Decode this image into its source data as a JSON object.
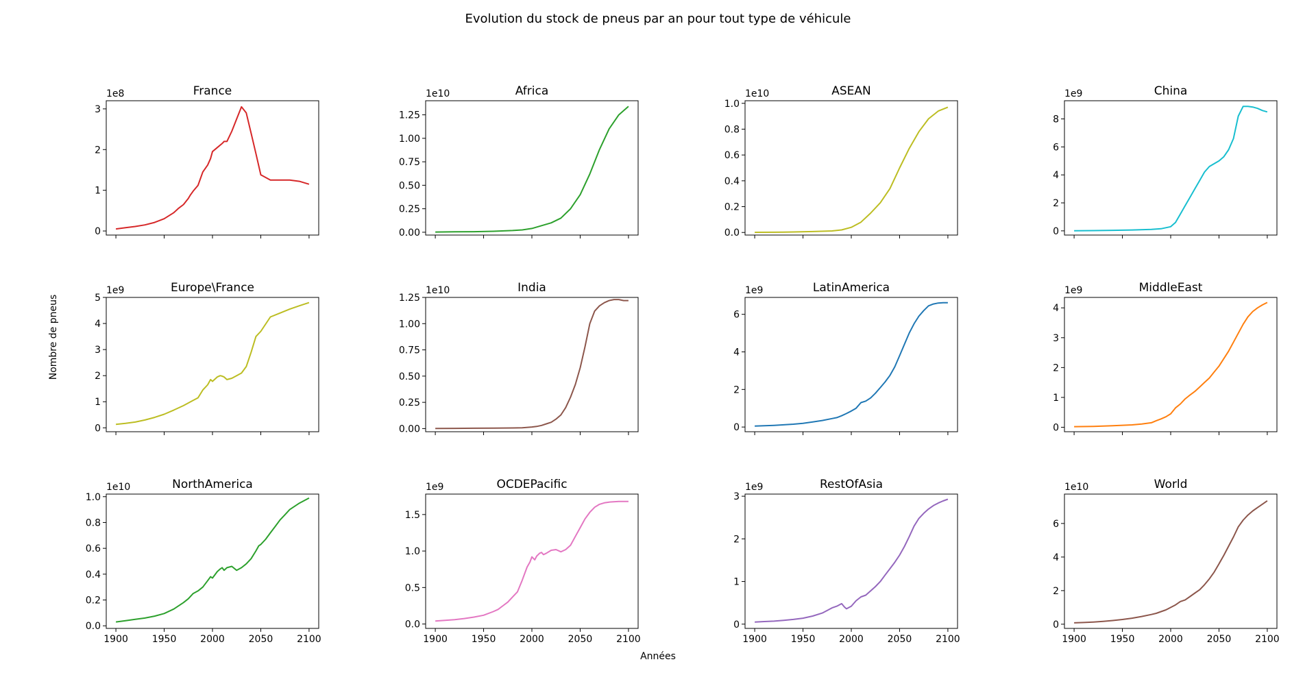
{
  "figure": {
    "title": "Evolution du stock de pneus par an pour tout type de véhicule",
    "xlabel": "Années",
    "ylabel": "Nombre de pneus"
  },
  "chart_data": [
    {
      "type": "line",
      "title": "France",
      "color": "#d62728",
      "scale_label": "1e8",
      "ylim": [
        -0.1,
        3.2
      ],
      "yticks": [
        0,
        1,
        2,
        3
      ],
      "xlim": [
        1890,
        2110
      ],
      "xticks": [
        1900,
        1950,
        2000,
        2050,
        2100
      ],
      "show_xticklabels": false,
      "x": [
        1900,
        1910,
        1920,
        1930,
        1940,
        1950,
        1960,
        1965,
        1970,
        1975,
        1977,
        1980,
        1985,
        1990,
        1995,
        1998,
        2000,
        2005,
        2010,
        2012,
        2015,
        2020,
        2025,
        2030,
        2035,
        2040,
        2045,
        2050,
        2060,
        2070,
        2080,
        2090,
        2100
      ],
      "y": [
        0.05,
        0.08,
        0.11,
        0.15,
        0.21,
        0.3,
        0.45,
        0.56,
        0.65,
        0.8,
        0.88,
        0.98,
        1.12,
        1.45,
        1.62,
        1.78,
        1.95,
        2.05,
        2.15,
        2.2,
        2.2,
        2.45,
        2.75,
        3.05,
        2.9,
        2.4,
        1.9,
        1.38,
        1.25,
        1.25,
        1.25,
        1.22,
        1.15
      ]
    },
    {
      "type": "line",
      "title": "Africa",
      "color": "#2ca02c",
      "scale_label": "1e10",
      "ylim": [
        -0.03,
        1.4
      ],
      "yticks": [
        0.0,
        0.25,
        0.5,
        0.75,
        1.0,
        1.25
      ],
      "yticklabels": [
        "0.00",
        "0.25",
        "0.50",
        "0.75",
        "1.00",
        "1.25"
      ],
      "xlim": [
        1890,
        2110
      ],
      "xticks": [
        1900,
        1950,
        2000,
        2050,
        2100
      ],
      "show_xticklabels": false,
      "x": [
        1900,
        1920,
        1940,
        1960,
        1980,
        1990,
        2000,
        2010,
        2020,
        2030,
        2040,
        2050,
        2060,
        2070,
        2080,
        2090,
        2100
      ],
      "y": [
        0.002,
        0.004,
        0.006,
        0.01,
        0.018,
        0.025,
        0.04,
        0.07,
        0.1,
        0.15,
        0.25,
        0.4,
        0.62,
        0.88,
        1.1,
        1.25,
        1.34
      ]
    },
    {
      "type": "line",
      "title": "ASEAN",
      "color": "#bcbd22",
      "scale_label": "1e10",
      "ylim": [
        -0.02,
        1.02
      ],
      "yticks": [
        0.0,
        0.2,
        0.4,
        0.6,
        0.8,
        1.0
      ],
      "yticklabels": [
        "0.0",
        "0.2",
        "0.4",
        "0.6",
        "0.8",
        "1.0"
      ],
      "xlim": [
        1890,
        2110
      ],
      "xticks": [
        1900,
        1950,
        2000,
        2050,
        2100
      ],
      "show_xticklabels": false,
      "x": [
        1900,
        1920,
        1940,
        1960,
        1980,
        1990,
        2000,
        2010,
        2020,
        2030,
        2040,
        2050,
        2060,
        2070,
        2080,
        2090,
        2100
      ],
      "y": [
        0.001,
        0.002,
        0.004,
        0.007,
        0.012,
        0.02,
        0.04,
        0.08,
        0.15,
        0.23,
        0.34,
        0.5,
        0.65,
        0.78,
        0.88,
        0.94,
        0.97
      ]
    },
    {
      "type": "line",
      "title": "China",
      "color": "#17becf",
      "scale_label": "1e9",
      "ylim": [
        -0.3,
        9.3
      ],
      "yticks": [
        0,
        2,
        4,
        6,
        8
      ],
      "xlim": [
        1890,
        2110
      ],
      "xticks": [
        1900,
        1950,
        2000,
        2050,
        2100
      ],
      "show_xticklabels": false,
      "x": [
        1900,
        1920,
        1940,
        1960,
        1980,
        1990,
        2000,
        2005,
        2010,
        2015,
        2020,
        2025,
        2030,
        2035,
        2040,
        2045,
        2050,
        2055,
        2060,
        2065,
        2070,
        2075,
        2080,
        2085,
        2090,
        2095,
        2100
      ],
      "y": [
        0.01,
        0.02,
        0.04,
        0.06,
        0.1,
        0.15,
        0.3,
        0.6,
        1.2,
        1.8,
        2.4,
        3.0,
        3.6,
        4.2,
        4.6,
        4.8,
        5.0,
        5.3,
        5.8,
        6.6,
        8.2,
        8.9,
        8.9,
        8.85,
        8.75,
        8.6,
        8.5
      ]
    },
    {
      "type": "line",
      "title": "Europe\\France",
      "color": "#bcbd22",
      "scale_label": "1e9",
      "ylim": [
        -0.15,
        5.0
      ],
      "yticks": [
        0,
        1,
        2,
        3,
        4,
        5
      ],
      "xlim": [
        1890,
        2110
      ],
      "xticks": [
        1900,
        1950,
        2000,
        2050,
        2100
      ],
      "show_xticklabels": false,
      "x": [
        1900,
        1910,
        1920,
        1930,
        1940,
        1950,
        1960,
        1970,
        1980,
        1985,
        1990,
        1995,
        1998,
        2000,
        2005,
        2008,
        2010,
        2012,
        2015,
        2020,
        2025,
        2030,
        2035,
        2040,
        2045,
        2050,
        2060,
        2070,
        2080,
        2090,
        2100
      ],
      "y": [
        0.13,
        0.17,
        0.22,
        0.3,
        0.4,
        0.52,
        0.68,
        0.85,
        1.05,
        1.15,
        1.45,
        1.65,
        1.85,
        1.78,
        1.95,
        2.0,
        1.98,
        1.95,
        1.85,
        1.9,
        2.0,
        2.1,
        2.35,
        2.9,
        3.5,
        3.7,
        4.25,
        4.4,
        4.55,
        4.68,
        4.8
      ]
    },
    {
      "type": "line",
      "title": "India",
      "color": "#8c564b",
      "scale_label": "1e10",
      "ylim": [
        -0.03,
        1.25
      ],
      "yticks": [
        0.0,
        0.25,
        0.5,
        0.75,
        1.0,
        1.25
      ],
      "yticklabels": [
        "0.00",
        "0.25",
        "0.50",
        "0.75",
        "1.00",
        "1.25"
      ],
      "xlim": [
        1890,
        2110
      ],
      "xticks": [
        1900,
        1950,
        2000,
        2050,
        2100
      ],
      "show_xticklabels": false,
      "x": [
        1900,
        1920,
        1940,
        1960,
        1980,
        1990,
        2000,
        2005,
        2010,
        2015,
        2020,
        2025,
        2030,
        2035,
        2040,
        2045,
        2050,
        2055,
        2060,
        2065,
        2070,
        2075,
        2080,
        2085,
        2090,
        2095,
        2100
      ],
      "y": [
        0.001,
        0.002,
        0.003,
        0.004,
        0.006,
        0.008,
        0.015,
        0.02,
        0.03,
        0.045,
        0.06,
        0.09,
        0.13,
        0.2,
        0.3,
        0.42,
        0.58,
        0.78,
        1.0,
        1.12,
        1.17,
        1.2,
        1.22,
        1.23,
        1.23,
        1.22,
        1.22
      ]
    },
    {
      "type": "line",
      "title": "LatinAmerica",
      "color": "#1f77b4",
      "scale_label": "1e9",
      "ylim": [
        -0.25,
        6.9
      ],
      "yticks": [
        0,
        2,
        4,
        6
      ],
      "xlim": [
        1890,
        2110
      ],
      "xticks": [
        1900,
        1950,
        2000,
        2050,
        2100
      ],
      "show_xticklabels": false,
      "x": [
        1900,
        1910,
        1920,
        1930,
        1940,
        1950,
        1960,
        1970,
        1980,
        1985,
        1990,
        1995,
        2000,
        2005,
        2010,
        2015,
        2020,
        2025,
        2030,
        2035,
        2040,
        2045,
        2050,
        2055,
        2060,
        2065,
        2070,
        2075,
        2080,
        2085,
        2090,
        2095,
        2100
      ],
      "y": [
        0.05,
        0.07,
        0.09,
        0.12,
        0.15,
        0.2,
        0.27,
        0.35,
        0.45,
        0.5,
        0.6,
        0.72,
        0.85,
        1.0,
        1.3,
        1.38,
        1.55,
        1.8,
        2.1,
        2.4,
        2.75,
        3.2,
        3.8,
        4.4,
        5.0,
        5.5,
        5.9,
        6.2,
        6.45,
        6.55,
        6.6,
        6.62,
        6.62
      ]
    },
    {
      "type": "line",
      "title": "MiddleEast",
      "color": "#ff7f0e",
      "scale_label": "1e9",
      "ylim": [
        -0.15,
        4.35
      ],
      "yticks": [
        0,
        1,
        2,
        3,
        4
      ],
      "xlim": [
        1890,
        2110
      ],
      "xticks": [
        1900,
        1950,
        2000,
        2050,
        2100
      ],
      "show_xticklabels": false,
      "x": [
        1900,
        1920,
        1940,
        1960,
        1970,
        1980,
        1985,
        1990,
        1995,
        2000,
        2005,
        2010,
        2015,
        2020,
        2025,
        2030,
        2035,
        2040,
        2045,
        2050,
        2055,
        2060,
        2065,
        2070,
        2075,
        2080,
        2085,
        2090,
        2095,
        2100
      ],
      "y": [
        0.02,
        0.03,
        0.05,
        0.08,
        0.11,
        0.15,
        0.22,
        0.28,
        0.35,
        0.45,
        0.65,
        0.78,
        0.95,
        1.08,
        1.2,
        1.35,
        1.5,
        1.65,
        1.85,
        2.05,
        2.3,
        2.55,
        2.85,
        3.15,
        3.45,
        3.7,
        3.88,
        4.0,
        4.1,
        4.18
      ]
    },
    {
      "type": "line",
      "title": "NorthAmerica",
      "color": "#2ca02c",
      "scale_label": "1e10",
      "ylim": [
        -0.02,
        1.02
      ],
      "yticks": [
        0.0,
        0.2,
        0.4,
        0.6,
        0.8,
        1.0
      ],
      "yticklabels": [
        "0.0",
        "0.2",
        "0.4",
        "0.6",
        "0.8",
        "1.0"
      ],
      "xlim": [
        1890,
        2110
      ],
      "xticks": [
        1900,
        1950,
        2000,
        2050,
        2100
      ],
      "show_xticklabels": true,
      "x": [
        1900,
        1910,
        1920,
        1930,
        1940,
        1950,
        1960,
        1970,
        1975,
        1980,
        1985,
        1990,
        1995,
        1998,
        2000,
        2005,
        2008,
        2010,
        2012,
        2015,
        2020,
        2025,
        2030,
        2035,
        2040,
        2045,
        2048,
        2050,
        2055,
        2060,
        2065,
        2070,
        2075,
        2080,
        2090,
        2100
      ],
      "y": [
        0.03,
        0.04,
        0.05,
        0.06,
        0.075,
        0.095,
        0.13,
        0.18,
        0.21,
        0.25,
        0.27,
        0.3,
        0.35,
        0.38,
        0.37,
        0.42,
        0.44,
        0.45,
        0.43,
        0.45,
        0.46,
        0.43,
        0.45,
        0.48,
        0.52,
        0.58,
        0.62,
        0.63,
        0.67,
        0.72,
        0.77,
        0.82,
        0.86,
        0.9,
        0.95,
        0.99
      ]
    },
    {
      "type": "line",
      "title": "OCDEPacific",
      "color": "#e377c2",
      "scale_label": "1e9",
      "ylim": [
        -0.06,
        1.78
      ],
      "yticks": [
        0.0,
        0.5,
        1.0,
        1.5
      ],
      "yticklabels": [
        "0.0",
        "0.5",
        "1.0",
        "1.5"
      ],
      "xlim": [
        1890,
        2110
      ],
      "xticks": [
        1900,
        1950,
        2000,
        2050,
        2100
      ],
      "show_xticklabels": true,
      "x": [
        1900,
        1910,
        1920,
        1930,
        1940,
        1950,
        1960,
        1965,
        1970,
        1975,
        1980,
        1985,
        1990,
        1995,
        1998,
        2000,
        2003,
        2005,
        2008,
        2010,
        2012,
        2015,
        2020,
        2025,
        2030,
        2035,
        2040,
        2045,
        2050,
        2055,
        2060,
        2065,
        2070,
        2075,
        2080,
        2090,
        2100
      ],
      "y": [
        0.04,
        0.05,
        0.06,
        0.075,
        0.095,
        0.12,
        0.17,
        0.2,
        0.25,
        0.3,
        0.37,
        0.44,
        0.6,
        0.78,
        0.85,
        0.92,
        0.88,
        0.93,
        0.97,
        0.98,
        0.95,
        0.97,
        1.01,
        1.02,
        0.99,
        1.02,
        1.08,
        1.2,
        1.32,
        1.44,
        1.53,
        1.6,
        1.64,
        1.66,
        1.67,
        1.68,
        1.68
      ]
    },
    {
      "type": "line",
      "title": "RestOfAsia",
      "color": "#9467bd",
      "scale_label": "1e9",
      "ylim": [
        -0.1,
        3.05
      ],
      "yticks": [
        0,
        1,
        2,
        3
      ],
      "xlim": [
        1890,
        2110
      ],
      "xticks": [
        1900,
        1950,
        2000,
        2050,
        2100
      ],
      "show_xticklabels": true,
      "x": [
        1900,
        1910,
        1920,
        1930,
        1940,
        1950,
        1960,
        1970,
        1975,
        1980,
        1985,
        1990,
        1993,
        1995,
        2000,
        2005,
        2010,
        2015,
        2020,
        2025,
        2030,
        2035,
        2040,
        2045,
        2050,
        2055,
        2060,
        2065,
        2070,
        2075,
        2080,
        2085,
        2090,
        2095,
        2100
      ],
      "y": [
        0.05,
        0.06,
        0.07,
        0.09,
        0.11,
        0.14,
        0.19,
        0.26,
        0.32,
        0.38,
        0.42,
        0.48,
        0.4,
        0.36,
        0.42,
        0.55,
        0.64,
        0.68,
        0.78,
        0.88,
        1.0,
        1.15,
        1.3,
        1.45,
        1.62,
        1.82,
        2.05,
        2.3,
        2.48,
        2.6,
        2.7,
        2.78,
        2.84,
        2.89,
        2.93
      ]
    },
    {
      "type": "line",
      "title": "World",
      "color": "#8c564b",
      "scale_label": "1e10",
      "ylim": [
        -0.25,
        7.75
      ],
      "yticks": [
        0,
        2,
        4,
        6
      ],
      "xlim": [
        1890,
        2110
      ],
      "xticks": [
        1900,
        1950,
        2000,
        2050,
        2100
      ],
      "show_xticklabels": true,
      "x": [
        1900,
        1910,
        1920,
        1930,
        1940,
        1950,
        1960,
        1970,
        1980,
        1985,
        1990,
        1995,
        2000,
        2005,
        2010,
        2015,
        2020,
        2025,
        2030,
        2035,
        2040,
        2045,
        2050,
        2055,
        2060,
        2065,
        2070,
        2075,
        2080,
        2085,
        2090,
        2095,
        2100
      ],
      "y": [
        0.08,
        0.1,
        0.13,
        0.17,
        0.22,
        0.28,
        0.36,
        0.46,
        0.58,
        0.65,
        0.75,
        0.85,
        1.0,
        1.15,
        1.35,
        1.45,
        1.65,
        1.85,
        2.05,
        2.35,
        2.7,
        3.1,
        3.6,
        4.1,
        4.65,
        5.2,
        5.8,
        6.2,
        6.5,
        6.75,
        6.95,
        7.15,
        7.35
      ]
    }
  ]
}
